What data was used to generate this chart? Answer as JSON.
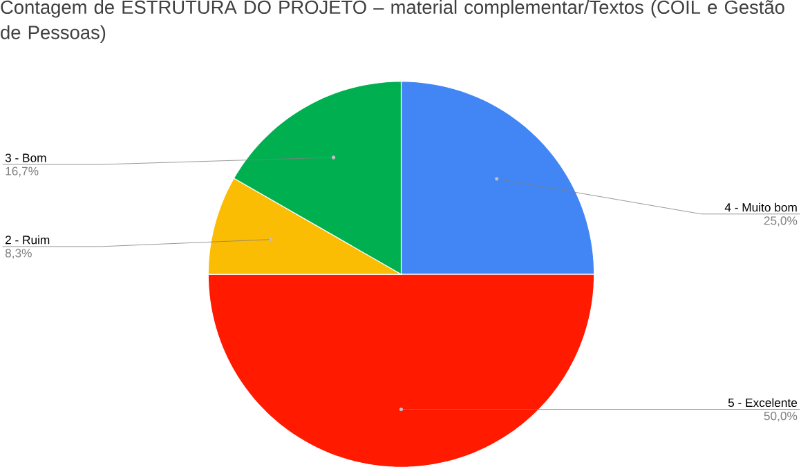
{
  "chart_data": {
    "type": "pie",
    "title": "Contagem de ESTRUTURA DO PROJETO – material complementar/Textos (COIL e Gestão de Pessoas)",
    "categories": [
      "4 - Muito bom",
      "5 - Excelente",
      "2 - Ruim",
      "3 - Bom"
    ],
    "values": [
      25.0,
      50.0,
      8.3,
      16.7
    ],
    "value_labels": [
      "25,0%",
      "50,0%",
      "8,3%",
      "16,7%"
    ],
    "colors": [
      "#4285f4",
      "#ff1a00",
      "#fbbc04",
      "#00b050"
    ]
  }
}
